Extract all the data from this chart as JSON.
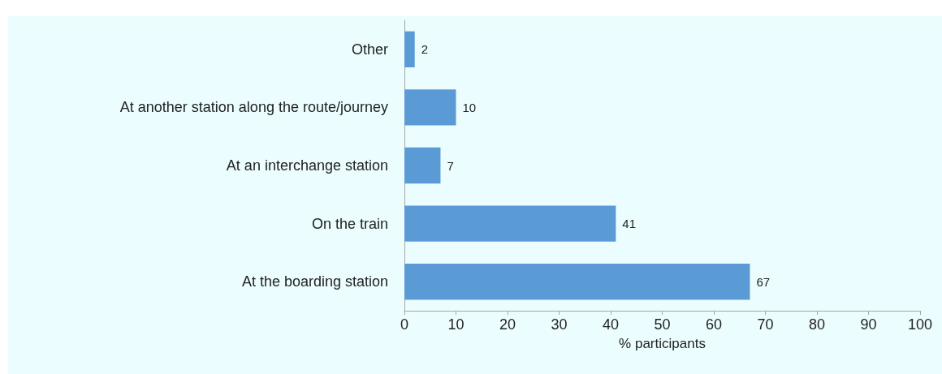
{
  "chart_data": {
    "type": "bar",
    "orientation": "horizontal",
    "xlabel": "% participants",
    "categories": [
      "Other",
      "At another station along the route/journey",
      "At an interchange station",
      "On the train",
      "At the boarding station"
    ],
    "values": [
      2,
      10,
      7,
      41,
      67
    ],
    "color": "#5b9bd5",
    "data_labels": true,
    "grid": false,
    "xlim": [
      0,
      100
    ],
    "xticks": [
      0,
      10,
      20,
      30,
      40,
      50,
      60,
      70,
      80,
      90,
      100
    ]
  }
}
